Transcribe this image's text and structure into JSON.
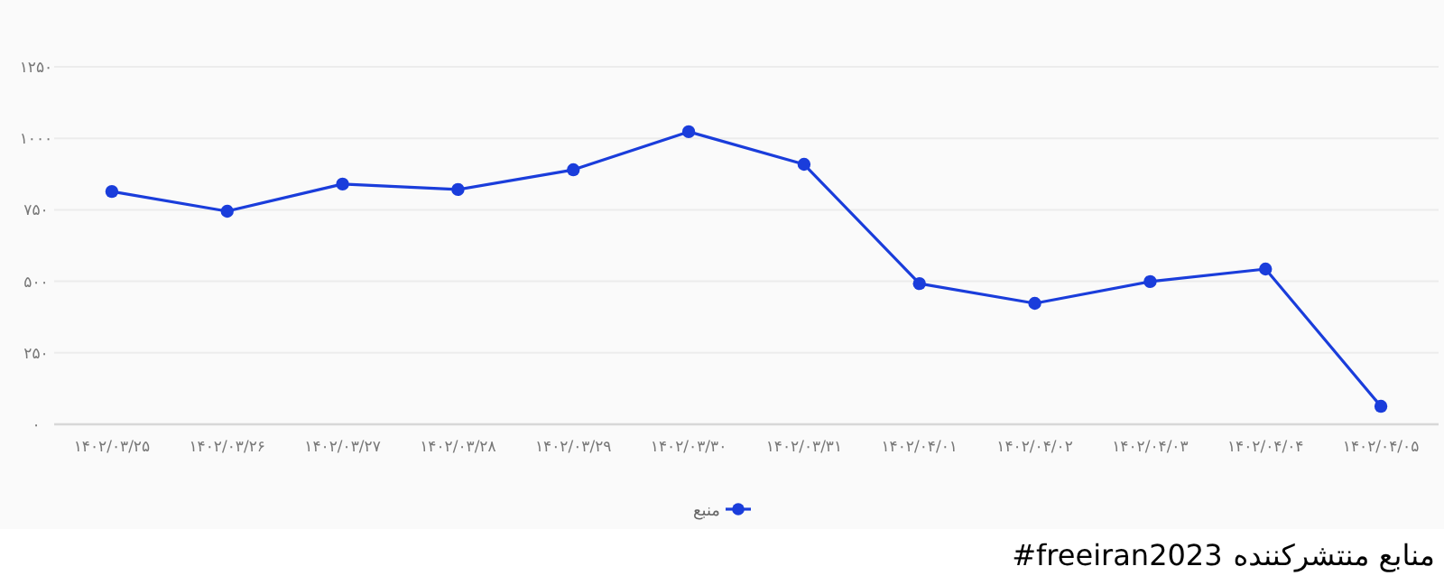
{
  "chart_data": {
    "type": "line",
    "categories": [
      "۱۴۰۲/۰۳/۲۵",
      "۱۴۰۲/۰۳/۲۶",
      "۱۴۰۲/۰۳/۲۷",
      "۱۴۰۲/۰۳/۲۸",
      "۱۴۰۲/۰۳/۲۹",
      "۱۴۰۲/۰۳/۳۰",
      "۱۴۰۲/۰۳/۳۱",
      "۱۴۰۲/۰۴/۰۱",
      "۱۴۰۲/۰۴/۰۲",
      "۱۴۰۲/۰۴/۰۳",
      "۱۴۰۲/۰۴/۰۴",
      "۱۴۰۲/۰۴/۰۵"
    ],
    "series": [
      {
        "name": "منبع",
        "color": "#1a3ddb",
        "values": [
          814,
          745,
          840,
          821,
          890,
          1023,
          909,
          492,
          423,
          499,
          543,
          63
        ]
      }
    ],
    "ylim": [
      0,
      1250
    ],
    "yticks": [
      {
        "value": 0,
        "label": "۰"
      },
      {
        "value": 250,
        "label": "۲۵۰"
      },
      {
        "value": 500,
        "label": "۵۰۰"
      },
      {
        "value": 750,
        "label": "۷۵۰"
      },
      {
        "value": 1000,
        "label": "۱۰۰۰"
      },
      {
        "value": 1250,
        "label": "۱۲۵۰"
      }
    ],
    "grid": "y",
    "legend": "bottom",
    "marker": "circle",
    "line_style": "solid",
    "annotations": [
      "منابع منتشرکننده",
      "#freeiran2023"
    ]
  }
}
